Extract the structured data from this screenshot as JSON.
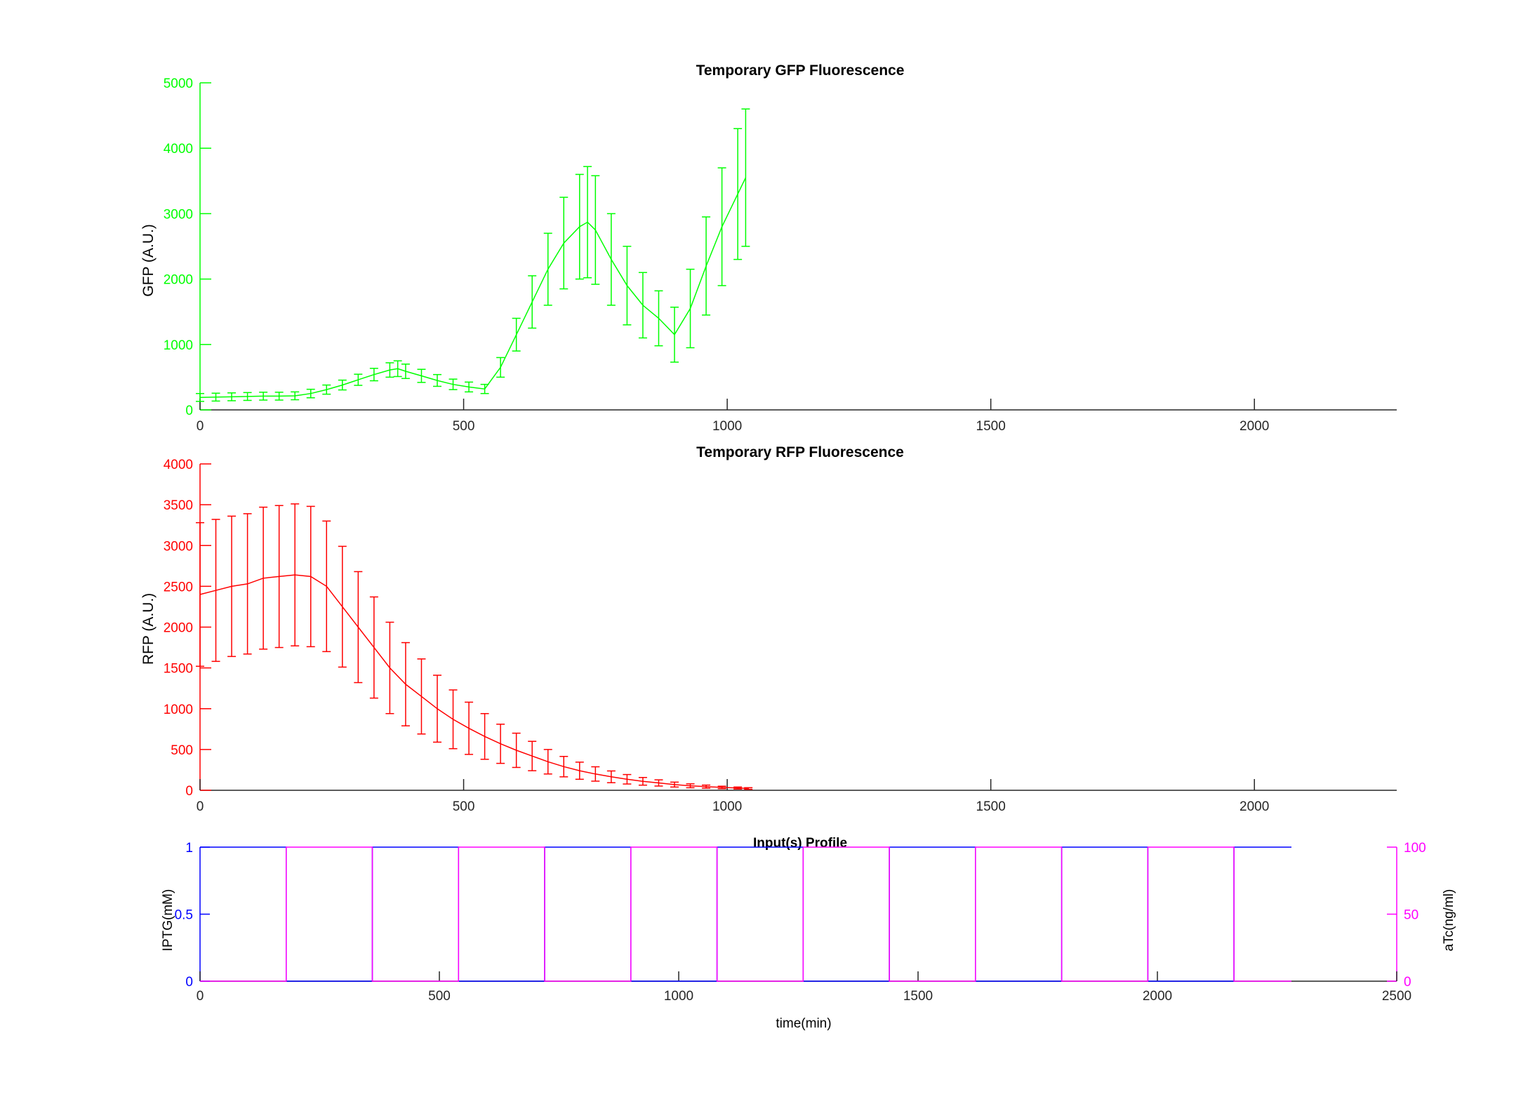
{
  "colors": {
    "gfp": "#00ff00",
    "rfp": "#ff0000",
    "iptg": "#0000ff",
    "atc": "#ff00ff",
    "axis": "#262626"
  },
  "chart_data": [
    {
      "type": "line",
      "title": "Temporary GFP Fluorescence",
      "ylabel": "GFP (A.U.)",
      "xlabel": "",
      "xlim": [
        0,
        2270
      ],
      "ylim": [
        0,
        5000
      ],
      "xticks": [
        "0",
        "500",
        "1000",
        "1500",
        "2000"
      ],
      "yticks": [
        "0",
        "1000",
        "2000",
        "3000",
        "4000",
        "5000"
      ],
      "error_bars": true,
      "series": [
        {
          "x": [
            0,
            30,
            60,
            90,
            120,
            150,
            180,
            210,
            240,
            270,
            300,
            330,
            360,
            375,
            390,
            420,
            450,
            480,
            510,
            540,
            570,
            600,
            630,
            660,
            690,
            720,
            735,
            750,
            780,
            810,
            840,
            870,
            900,
            930,
            960,
            990,
            1020,
            1035
          ],
          "y": [
            190,
            195,
            200,
            205,
            210,
            210,
            215,
            250,
            310,
            380,
            460,
            540,
            610,
            630,
            590,
            520,
            450,
            390,
            350,
            320,
            650,
            1150,
            1650,
            2150,
            2550,
            2800,
            2870,
            2750,
            2300,
            1900,
            1600,
            1400,
            1150,
            1550,
            2200,
            2800,
            3300,
            3550
          ],
          "err": [
            60,
            60,
            60,
            60,
            60,
            60,
            60,
            65,
            70,
            75,
            85,
            95,
            110,
            120,
            110,
            100,
            90,
            80,
            75,
            70,
            150,
            250,
            400,
            550,
            700,
            800,
            850,
            830,
            700,
            600,
            500,
            420,
            420,
            600,
            750,
            900,
            1000,
            1050
          ]
        }
      ]
    },
    {
      "type": "line",
      "title": "Temporary RFP Fluorescence",
      "ylabel": "RFP (A.U.)",
      "xlabel": "",
      "xlim": [
        0,
        2270
      ],
      "ylim": [
        0,
        4000
      ],
      "xticks": [
        "0",
        "500",
        "1000",
        "1500",
        "2000"
      ],
      "yticks": [
        "0",
        "500",
        "1000",
        "1500",
        "2000",
        "2500",
        "3000",
        "3500",
        "4000"
      ],
      "error_bars": true,
      "series": [
        {
          "x": [
            0,
            30,
            60,
            90,
            120,
            150,
            180,
            210,
            240,
            270,
            300,
            330,
            360,
            390,
            420,
            450,
            480,
            510,
            540,
            570,
            600,
            630,
            660,
            690,
            720,
            750,
            780,
            810,
            840,
            870,
            900,
            930,
            960,
            990,
            1020,
            1040
          ],
          "y": [
            2400,
            2450,
            2500,
            2530,
            2600,
            2620,
            2640,
            2620,
            2500,
            2250,
            2000,
            1750,
            1500,
            1300,
            1150,
            1000,
            870,
            760,
            660,
            570,
            490,
            420,
            350,
            290,
            240,
            200,
            165,
            135,
            110,
            90,
            70,
            55,
            45,
            35,
            28,
            22
          ],
          "err": [
            880,
            870,
            860,
            860,
            870,
            870,
            870,
            860,
            800,
            740,
            680,
            620,
            560,
            510,
            460,
            410,
            360,
            320,
            280,
            240,
            210,
            180,
            150,
            125,
            105,
            88,
            72,
            58,
            47,
            38,
            30,
            24,
            19,
            15,
            12,
            10
          ]
        }
      ]
    },
    {
      "type": "line",
      "title": "Input(s) Profile",
      "xlabel": "time(min)",
      "ylabel": "IPTG(mM)",
      "y2label": "aTc(ng/ml)",
      "xlim": [
        0,
        2500
      ],
      "ylim": [
        0,
        1
      ],
      "y2lim": [
        0,
        100
      ],
      "xticks": [
        "0",
        "500",
        "1000",
        "1500",
        "2000",
        "2500"
      ],
      "yticks": [
        "0",
        "0.5",
        "1"
      ],
      "y2ticks": [
        "0",
        "50",
        "100"
      ],
      "step_period": 180,
      "series": [
        {
          "name": "IPTG",
          "x": [
            0,
            180,
            180,
            360,
            360,
            540,
            540,
            720,
            720,
            900,
            900,
            1080,
            1080,
            1260,
            1260,
            1440,
            1440,
            1620,
            1620,
            1800,
            1800,
            1980,
            1980,
            2160,
            2160,
            2280
          ],
          "y": [
            1,
            1,
            0,
            0,
            1,
            1,
            0,
            0,
            1,
            1,
            0,
            0,
            1,
            1,
            0,
            0,
            1,
            1,
            0,
            0,
            1,
            1,
            0,
            0,
            1,
            1
          ]
        },
        {
          "name": "aTc",
          "x": [
            0,
            180,
            180,
            360,
            360,
            540,
            540,
            720,
            720,
            900,
            900,
            1080,
            1080,
            1260,
            1260,
            1440,
            1440,
            1620,
            1620,
            1800,
            1800,
            1980,
            1980,
            2160,
            2160,
            2280
          ],
          "y": [
            0,
            0,
            100,
            100,
            0,
            0,
            100,
            100,
            0,
            0,
            100,
            100,
            0,
            0,
            100,
            100,
            0,
            0,
            100,
            100,
            0,
            0,
            100,
            100,
            0,
            0
          ]
        }
      ]
    }
  ]
}
